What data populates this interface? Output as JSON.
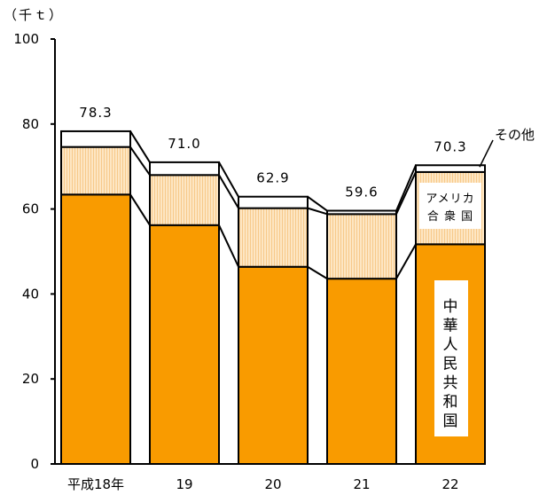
{
  "chart_data": {
    "type": "bar",
    "stacked": true,
    "unit_label": "（千ｔ）",
    "ylim": [
      0,
      100
    ],
    "yticks": [
      0,
      20,
      40,
      60,
      80,
      100
    ],
    "categories": [
      "平成18年",
      "19",
      "20",
      "21",
      "22"
    ],
    "totals": [
      78.3,
      71.0,
      62.9,
      59.6,
      70.3
    ],
    "total_labels": [
      "78.3",
      "71.0",
      "62.9",
      "59.6",
      "70.3"
    ],
    "series": [
      {
        "name": "中華人民共和国",
        "values": [
          63.4,
          56.2,
          46.4,
          43.6,
          51.7
        ]
      },
      {
        "name": "アメリカ合衆国",
        "values": [
          11.2,
          11.8,
          13.8,
          15.2,
          17.0
        ]
      },
      {
        "name": "その他",
        "values": [
          3.7,
          3.0,
          2.7,
          0.8,
          1.6
        ]
      }
    ],
    "series_label_lines": {
      "中華人民共和国": [
        "中",
        "華",
        "人",
        "民",
        "共",
        "和",
        "国"
      ],
      "アメリカ合衆国": [
        "アメリカ",
        "合 衆 国"
      ]
    },
    "connector_lines": true,
    "legend": "inline-labels"
  },
  "colors": {
    "china": "#f99b00",
    "usa": "#fde6c3",
    "usa_stripe": "#f7c98a",
    "other": "#ffffff",
    "outline": "#000000"
  }
}
